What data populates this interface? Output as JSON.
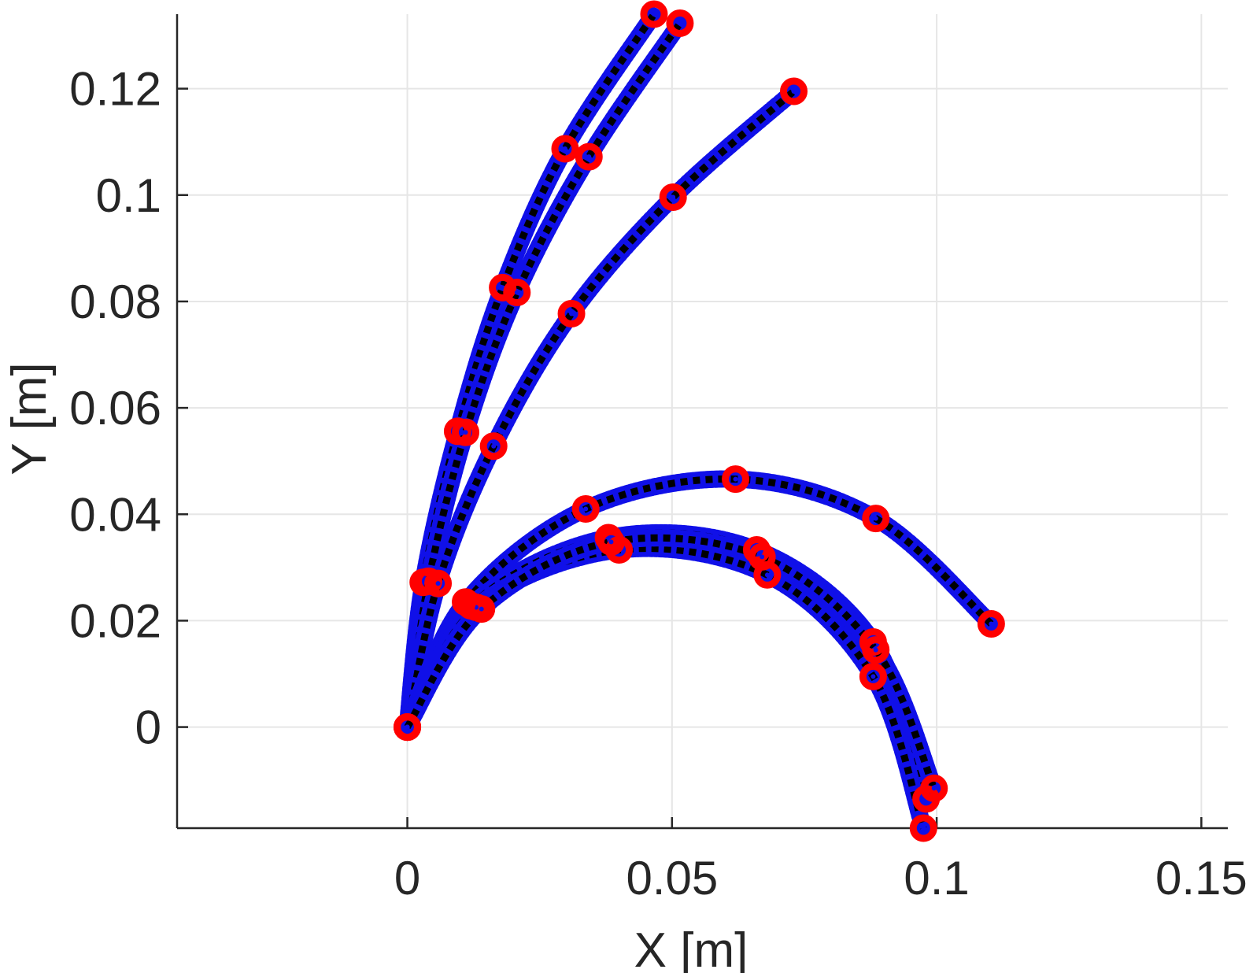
{
  "chart_data": {
    "type": "line",
    "title": "",
    "xlabel": "X [m]",
    "ylabel": "Y [m]",
    "xlim": [
      -0.0435,
      0.155
    ],
    "ylim": [
      -0.019,
      0.134
    ],
    "grid": true,
    "xticks": [
      0,
      0.05,
      0.1,
      0.15
    ],
    "xtick_labels": [
      "0",
      "0.05",
      "0.1",
      "0.15"
    ],
    "yticks": [
      0,
      0.02,
      0.04,
      0.06,
      0.08,
      0.1,
      0.12
    ],
    "ytick_labels": [
      "0",
      "0.02",
      "0.04",
      "0.06",
      "0.08",
      "0.1",
      "0.12"
    ],
    "colors": {
      "trajectory": "#1010e8",
      "reference": "#000000",
      "markers": "#ff0000",
      "grid": "#e6e6e6",
      "axis": "#262626"
    },
    "series": [
      {
        "x": [
          0,
          0.003,
          0.0095,
          0.018,
          0.0298,
          0.0466
        ],
        "y": [
          0,
          0.0272,
          0.0556,
          0.0826,
          0.1087,
          0.134
        ]
      },
      {
        "x": [
          0,
          0.004,
          0.011,
          0.0207,
          0.0343,
          0.0515
        ],
        "y": [
          0,
          0.0274,
          0.0554,
          0.0817,
          0.1072,
          0.1323
        ]
      },
      {
        "x": [
          0,
          0.0058,
          0.0163,
          0.031,
          0.0502,
          0.073
        ],
        "y": [
          0,
          0.027,
          0.0528,
          0.0777,
          0.0996,
          0.1195
        ]
      },
      {
        "x": [
          0,
          0.011,
          0.0337,
          0.062,
          0.0885,
          0.1103
        ],
        "y": [
          0,
          0.0235,
          0.041,
          0.0466,
          0.0392,
          0.0194
        ]
      },
      {
        "x": [
          0,
          0.012,
          0.038,
          0.066,
          0.088,
          0.098
        ],
        "y": [
          0,
          0.0228,
          0.0356,
          0.0333,
          0.016,
          -0.0135
        ]
      },
      {
        "x": [
          0,
          0.013,
          0.04,
          0.068,
          0.088,
          0.0975
        ],
        "y": [
          0,
          0.0225,
          0.0333,
          0.0286,
          0.0095,
          -0.019
        ]
      },
      {
        "x": [
          0,
          0.014,
          0.0385,
          0.067,
          0.0885,
          0.0995
        ],
        "y": [
          0,
          0.0222,
          0.0348,
          0.032,
          0.0145,
          -0.0115
        ]
      }
    ]
  }
}
